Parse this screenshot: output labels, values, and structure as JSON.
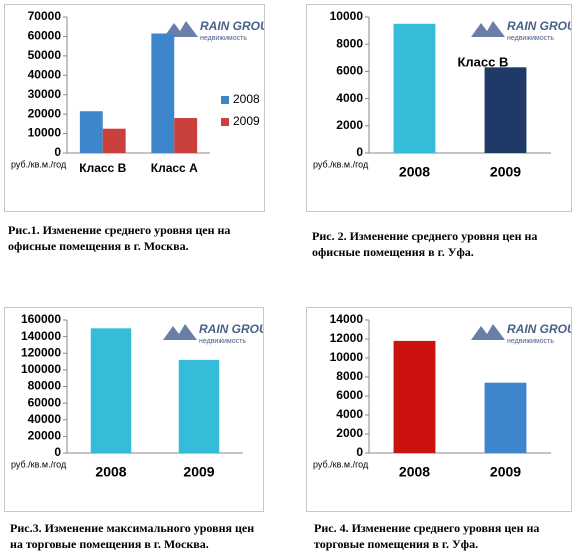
{
  "logo": {
    "name": "RAIN GROUP",
    "sub": "недвижимость"
  },
  "chart_data": [
    {
      "type": "bar",
      "caption": "Рис.1. Изменение среднего уровня цен на офисные помещения в г. Москва.",
      "y_label": "руб./кв.м./год",
      "categories": [
        "Класс B",
        "Класс A"
      ],
      "series": [
        {
          "name": "2008",
          "color": "#3d86cc",
          "values": [
            21500,
            61500
          ]
        },
        {
          "name": "2009",
          "color": "#c9403c",
          "values": [
            12500,
            18000
          ]
        }
      ],
      "ylim": [
        0,
        70000
      ],
      "yticks": [
        0,
        10000,
        20000,
        30000,
        40000,
        50000,
        60000,
        70000
      ],
      "legend": "right"
    },
    {
      "type": "bar",
      "caption": "Рис. 2. Изменение среднего уровня цен на офисные помещения в г. Уфа.",
      "y_label": "руб./кв.м./год",
      "annotation": "Класс B",
      "categories": [
        "2008",
        "2009"
      ],
      "values": [
        9500,
        6300
      ],
      "colors": [
        "#35bcd8",
        "#1f3a66"
      ],
      "ylim": [
        0,
        10000
      ],
      "yticks": [
        0,
        2000,
        4000,
        6000,
        8000,
        10000
      ]
    },
    {
      "type": "bar",
      "caption": "Рис.3. Изменение максимального уровня цен на торговые помещения в г. Москва.",
      "y_label": "руб./кв.м./год",
      "categories": [
        "2008",
        "2009"
      ],
      "values": [
        150000,
        112000
      ],
      "colors": [
        "#35bcd8",
        "#35bcd8"
      ],
      "ylim": [
        0,
        160000
      ],
      "yticks": [
        0,
        20000,
        40000,
        60000,
        80000,
        100000,
        120000,
        140000,
        160000
      ]
    },
    {
      "type": "bar",
      "caption": "Рис. 4. Изменение среднего уровня цен на торговые помещения в г. Уфа.",
      "y_label": "руб./кв.м./год",
      "categories": [
        "2008",
        "2009"
      ],
      "values": [
        11800,
        7400
      ],
      "colors": [
        "#cc1111",
        "#3d86cc"
      ],
      "ylim": [
        0,
        14000
      ],
      "yticks": [
        0,
        2000,
        4000,
        6000,
        8000,
        10000,
        12000,
        14000
      ]
    }
  ]
}
